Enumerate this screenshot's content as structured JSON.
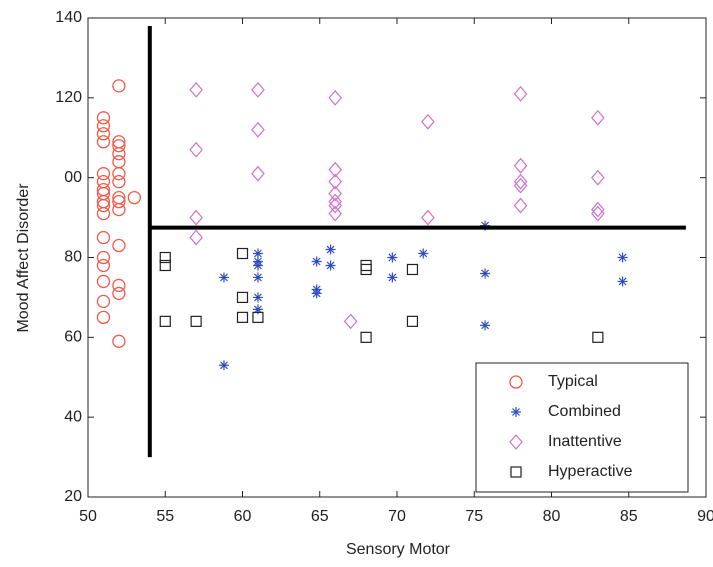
{
  "chart_data": {
    "type": "scatter",
    "xlabel": "Sensory Motor",
    "ylabel": "Mood Affect Disorder",
    "xlim": [
      50,
      90
    ],
    "ylim": [
      20,
      140
    ],
    "xticks": [
      50,
      55,
      60,
      65,
      70,
      75,
      80,
      85,
      90
    ],
    "yticks": [
      20,
      40,
      60,
      80,
      {
        "value": 100,
        "label": "00"
      },
      120,
      140
    ],
    "legend": "lower right",
    "series": [
      {
        "name": "Typical",
        "color": "#f05a4a",
        "marker": "circle",
        "x": [
          51,
          51,
          51,
          51,
          51,
          51,
          51,
          51,
          51,
          51,
          51,
          51,
          51,
          51,
          51,
          51,
          51,
          52,
          52,
          52,
          52,
          52,
          52,
          52,
          52,
          52,
          52,
          52,
          52,
          52,
          52,
          53
        ],
        "y": [
          115,
          113,
          111,
          109,
          101,
          99,
          97,
          96,
          94,
          93,
          91,
          85,
          80,
          78,
          74,
          69,
          65,
          123,
          109,
          108,
          106,
          104,
          101,
          99,
          95,
          94,
          92,
          83,
          73,
          71,
          59,
          95
        ]
      },
      {
        "name": "Combined",
        "color": "#2f4fbf",
        "marker": "asterisk",
        "x": [
          58.8,
          58.8,
          61,
          61,
          61,
          61,
          61,
          61,
          64.8,
          64.8,
          64.8,
          65.7,
          65.7,
          69.7,
          69.7,
          71.7,
          75.7,
          75.7,
          75.7,
          84.6,
          84.6
        ],
        "y": [
          75,
          53,
          81,
          79,
          78,
          75,
          70,
          67,
          79,
          72,
          71,
          82,
          78,
          80,
          75,
          81,
          88,
          76,
          63,
          80,
          74
        ]
      },
      {
        "name": "Inattentive",
        "color": "#d070d0",
        "marker": "diamond",
        "x": [
          57,
          57,
          57,
          57,
          61,
          61,
          61,
          66,
          66,
          66,
          66,
          66,
          66,
          66,
          67,
          72,
          72,
          78,
          78,
          78,
          78,
          78,
          83,
          83,
          83,
          83
        ],
        "y": [
          122,
          107,
          90,
          85,
          122,
          112,
          101,
          120,
          102,
          99,
          96,
          94,
          93,
          91,
          64,
          114,
          90,
          121,
          103,
          99,
          98,
          93,
          115,
          100,
          92,
          91
        ]
      },
      {
        "name": "Hyperactive",
        "color": "#222222",
        "marker": "square",
        "x": [
          55,
          55,
          55,
          57,
          60,
          60,
          60,
          61,
          68,
          68,
          68,
          71,
          71,
          83
        ],
        "y": [
          80,
          78,
          64,
          64,
          81,
          70,
          65,
          65,
          78,
          77,
          60,
          77,
          64,
          60
        ]
      }
    ],
    "lines": [
      {
        "x": [
          54,
          54
        ],
        "y": [
          30,
          138
        ],
        "color": "#000000"
      },
      {
        "x": [
          54,
          88.7
        ],
        "y": [
          87.5,
          87.5
        ],
        "color": "#000000"
      }
    ]
  }
}
